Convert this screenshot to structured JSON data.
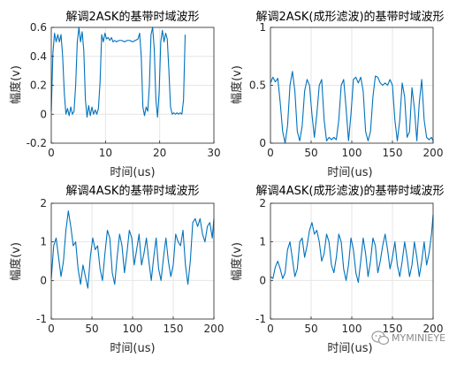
{
  "watermark": {
    "text": "MYMINIEYE",
    "icon": "wechat-icon"
  },
  "colors": {
    "line": "#0072BD",
    "grid": "#e6e6e6",
    "axis": "#262626"
  },
  "chart_data": [
    {
      "type": "line",
      "title": "解调2ASK的基带时域波形",
      "xlabel": "时间(us)",
      "ylabel": "幅度(v)",
      "xlim": [
        0,
        30
      ],
      "ylim": [
        -0.2,
        0.6
      ],
      "xticks": [
        0,
        10,
        20,
        30
      ],
      "yticks": [
        -0.2,
        0,
        0.2,
        0.4,
        0.6
      ],
      "grid": true,
      "series": [
        {
          "x": [
            0,
            0.3,
            0.6,
            0.9,
            1.2,
            1.5,
            1.8,
            2.1,
            2.4,
            2.7,
            3.0,
            3.3,
            3.6,
            3.9,
            4.2,
            4.5,
            4.8,
            5.1,
            5.4,
            5.7,
            6.0,
            6.3,
            6.6,
            6.9,
            7.2,
            7.5,
            7.8,
            8.1,
            8.4,
            8.7,
            9.0,
            9.3,
            9.6,
            9.9,
            10.2,
            10.5,
            10.8,
            11.1,
            11.4,
            11.7,
            12.0,
            12.5,
            13.0,
            13.5,
            14.0,
            14.5,
            15.0,
            15.5,
            16.0,
            16.3,
            16.6,
            16.9,
            17.2,
            17.5,
            17.8,
            18.1,
            18.4,
            18.7,
            19.0,
            19.3,
            19.6,
            19.9,
            20.2,
            20.5,
            20.8,
            21.1,
            21.4,
            21.7,
            22.0,
            22.3,
            22.6,
            22.9,
            23.2,
            23.5,
            23.8,
            24.1,
            24.4,
            24.7
          ],
          "y": [
            0.02,
            0.42,
            0.56,
            0.5,
            0.55,
            0.5,
            0.55,
            0.4,
            0.15,
            0.0,
            0.04,
            -0.01,
            0.05,
            0.0,
            0.02,
            0.2,
            0.5,
            0.6,
            0.5,
            0.57,
            0.44,
            0.1,
            -0.02,
            0.06,
            -0.01,
            0.05,
            0.0,
            0.03,
            0.0,
            0.04,
            0.22,
            0.55,
            0.5,
            0.56,
            0.52,
            0.53,
            0.51,
            0.53,
            0.5,
            0.51,
            0.5,
            0.51,
            0.51,
            0.5,
            0.51,
            0.51,
            0.5,
            0.51,
            0.52,
            0.56,
            0.4,
            0.05,
            -0.01,
            0.05,
            0.02,
            0.2,
            0.55,
            0.6,
            0.45,
            0.1,
            -0.02,
            0.15,
            0.5,
            0.58,
            0.5,
            0.56,
            0.52,
            0.3,
            0.05,
            0.0,
            0.01,
            0.0,
            0.01,
            0.0,
            0.01,
            0.0,
            0.1,
            0.55
          ]
        }
      ]
    },
    {
      "type": "line",
      "title": "解调2ASK(成形滤波)的基带时域波形",
      "xlabel": "时间(us)",
      "ylabel": "幅度(v)",
      "xlim": [
        0,
        200
      ],
      "ylim": [
        0,
        1
      ],
      "xticks": [
        0,
        50,
        100,
        150,
        200
      ],
      "yticks": [
        0,
        0.5,
        1
      ],
      "grid": true,
      "series": [
        {
          "x": [
            0,
            3,
            6,
            9,
            12,
            15,
            18,
            21,
            24,
            27,
            30,
            33,
            36,
            39,
            42,
            45,
            48,
            51,
            54,
            57,
            60,
            63,
            66,
            69,
            72,
            75,
            78,
            81,
            84,
            87,
            90,
            93,
            96,
            99,
            102,
            105,
            108,
            111,
            114,
            117,
            120,
            123,
            126,
            129,
            132,
            135,
            138,
            141,
            144,
            147,
            150,
            153,
            156,
            159,
            162,
            165,
            168,
            171,
            174,
            177,
            180,
            183,
            186,
            189,
            192,
            195,
            198,
            200
          ],
          "y": [
            0.52,
            0.57,
            0.53,
            0.56,
            0.35,
            0.1,
            0.0,
            0.15,
            0.5,
            0.62,
            0.45,
            0.1,
            0.02,
            0.15,
            0.45,
            0.55,
            0.5,
            0.25,
            0.05,
            0.25,
            0.5,
            0.55,
            0.2,
            0.02,
            0.05,
            0.03,
            0.05,
            0.03,
            0.2,
            0.5,
            0.55,
            0.3,
            0.02,
            0.25,
            0.55,
            0.57,
            0.52,
            0.57,
            0.45,
            0.1,
            0.02,
            0.1,
            0.4,
            0.58,
            0.57,
            0.52,
            0.5,
            0.52,
            0.5,
            0.55,
            0.5,
            0.2,
            0.02,
            0.2,
            0.52,
            0.4,
            0.05,
            0.1,
            0.48,
            0.3,
            0.02,
            0.35,
            0.55,
            0.2,
            0.05,
            0.03,
            0.05,
            0.02
          ]
        }
      ]
    },
    {
      "type": "line",
      "title": "解调4ASK的基带时域波形",
      "xlabel": "时间(us)",
      "ylabel": "幅度(v)",
      "xlim": [
        0,
        200
      ],
      "ylim": [
        -1,
        2
      ],
      "xticks": [
        0,
        50,
        100,
        150,
        200
      ],
      "yticks": [
        -1,
        0,
        1,
        2
      ],
      "grid": true,
      "series": [
        {
          "x": [
            0,
            3,
            6,
            9,
            12,
            15,
            18,
            21,
            24,
            27,
            30,
            33,
            36,
            39,
            42,
            45,
            48,
            51,
            54,
            57,
            60,
            63,
            66,
            69,
            72,
            75,
            78,
            81,
            84,
            87,
            90,
            93,
            96,
            99,
            102,
            105,
            108,
            111,
            114,
            117,
            120,
            123,
            126,
            129,
            132,
            135,
            138,
            141,
            144,
            147,
            150,
            153,
            156,
            159,
            162,
            165,
            168,
            171,
            174,
            177,
            180,
            183,
            186,
            189,
            192,
            195,
            198,
            200
          ],
          "y": [
            0.05,
            0.9,
            1.1,
            0.6,
            0.1,
            0.5,
            1.3,
            1.8,
            1.4,
            0.9,
            1.0,
            0.3,
            -0.1,
            0.4,
            0.1,
            -0.2,
            0.6,
            1.1,
            0.8,
            0.9,
            0.3,
            0.0,
            0.7,
            1.3,
            1.1,
            0.2,
            -0.1,
            0.6,
            1.2,
            0.9,
            0.2,
            0.7,
            1.3,
            1.1,
            0.4,
            0.8,
            1.2,
            0.4,
            0.7,
            1.1,
            0.5,
            0.0,
            0.6,
            1.1,
            0.3,
            0.0,
            0.6,
            1.1,
            0.5,
            0.1,
            0.4,
            1.2,
            1.0,
            0.9,
            1.3,
            0.4,
            -0.1,
            0.5,
            1.5,
            1.6,
            1.4,
            1.6,
            1.2,
            1.0,
            1.4,
            1.5,
            1.1,
            1.6
          ]
        }
      ]
    },
    {
      "type": "line",
      "title": "解调4ASK(成形滤波)的基带时域波形",
      "xlabel": "时间(us)",
      "ylabel": "幅度(v)",
      "xlim": [
        0,
        200
      ],
      "ylim": [
        -1,
        2
      ],
      "xticks": [
        0,
        50,
        100,
        150,
        200
      ],
      "yticks": [
        -1,
        0,
        1,
        2
      ],
      "grid": true,
      "series": [
        {
          "x": [
            0,
            3,
            6,
            9,
            12,
            15,
            18,
            21,
            24,
            27,
            30,
            33,
            36,
            39,
            42,
            45,
            48,
            51,
            54,
            57,
            60,
            63,
            66,
            69,
            72,
            75,
            78,
            81,
            84,
            87,
            90,
            93,
            96,
            99,
            102,
            105,
            108,
            111,
            114,
            117,
            120,
            123,
            126,
            129,
            132,
            135,
            138,
            141,
            144,
            147,
            150,
            153,
            156,
            159,
            162,
            165,
            168,
            171,
            174,
            177,
            180,
            183,
            186,
            189,
            192,
            195,
            198,
            200
          ],
          "y": [
            0.1,
            0.05,
            0.35,
            0.5,
            0.3,
            0.05,
            0.2,
            0.8,
            1.0,
            0.55,
            0.1,
            0.3,
            1.0,
            1.1,
            0.6,
            0.9,
            1.3,
            1.5,
            1.2,
            1.3,
            1.0,
            0.5,
            0.7,
            1.2,
            1.0,
            0.4,
            0.2,
            0.6,
            1.2,
            1.0,
            0.3,
            0.0,
            0.4,
            1.1,
            0.8,
            0.2,
            -0.05,
            0.5,
            1.1,
            0.7,
            0.1,
            0.5,
            1.1,
            0.9,
            0.2,
            0.5,
            0.9,
            1.2,
            0.8,
            0.3,
            0.6,
            1.0,
            0.4,
            0.1,
            0.5,
            1.0,
            0.6,
            0.1,
            0.4,
            1.0,
            0.6,
            0.1,
            0.5,
            1.0,
            0.4,
            0.7,
            1.2,
            1.7
          ]
        }
      ]
    }
  ]
}
